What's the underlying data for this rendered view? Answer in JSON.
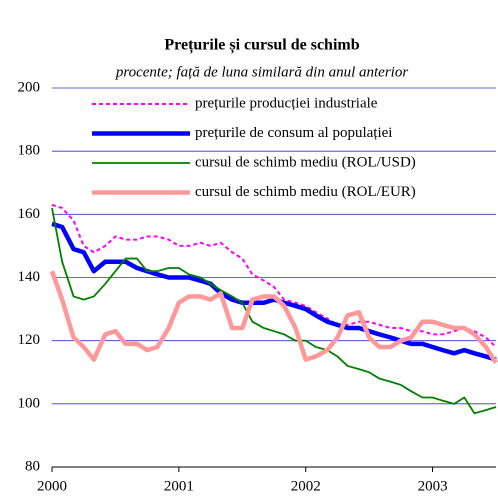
{
  "chart_data": {
    "type": "line",
    "title": "Prețurile și cursul de schimb",
    "subtitle": "procente; față de luna similară din anul anterior",
    "x": [
      2000,
      2000.08,
      2000.17,
      2000.25,
      2000.33,
      2000.42,
      2000.5,
      2000.58,
      2000.67,
      2000.75,
      2000.83,
      2000.92,
      2001,
      2001.08,
      2001.17,
      2001.25,
      2001.33,
      2001.42,
      2001.5,
      2001.58,
      2001.67,
      2001.75,
      2001.83,
      2001.92,
      2002,
      2002.08,
      2002.17,
      2002.25,
      2002.33,
      2002.42,
      2002.5,
      2002.58,
      2002.67,
      2002.75,
      2002.83,
      2002.92,
      2003,
      2003.08,
      2003.17,
      2003.25,
      2003.33,
      2003.42,
      2003.5
    ],
    "xlim": [
      2000,
      2003.5
    ],
    "xticks": [
      2000,
      2001,
      2002,
      2003
    ],
    "ylim": [
      80,
      200
    ],
    "yticks": [
      80,
      100,
      120,
      140,
      160,
      180,
      200
    ],
    "grid": true,
    "series": [
      {
        "name": "prețurile producției industriale",
        "color": "#ff00ff",
        "style": "dashed",
        "values": [
          163,
          162,
          158,
          150,
          148,
          150,
          153,
          152,
          152,
          153,
          153,
          152,
          150,
          150,
          151,
          150,
          151,
          148,
          146,
          141,
          139,
          137,
          133,
          132,
          131,
          129,
          127,
          125,
          125,
          126,
          126,
          125,
          124,
          124,
          123,
          123,
          122,
          122,
          123,
          124,
          123,
          121,
          118
        ]
      },
      {
        "name": "prețurile de consum al populației",
        "color": "#0000ff",
        "style": "thick",
        "values": [
          157,
          156,
          149,
          148,
          142,
          145,
          145,
          145,
          143,
          142,
          141,
          140,
          140,
          140,
          139,
          138,
          135,
          133,
          132,
          132,
          132,
          133,
          132,
          131,
          130,
          128,
          126,
          125,
          124,
          124,
          123,
          122,
          121,
          120,
          119,
          119,
          118,
          117,
          116,
          117,
          116,
          115,
          114
        ]
      },
      {
        "name": "cursul de schimb mediu (ROL/USD)",
        "color": "#008000",
        "style": "thin",
        "values": [
          162,
          145,
          134,
          133,
          134,
          138,
          142,
          146,
          146,
          142,
          142,
          143,
          143,
          141,
          140,
          138,
          136,
          134,
          132,
          126,
          124,
          123,
          122,
          120,
          120,
          118,
          117,
          115,
          112,
          111,
          110,
          108,
          107,
          106,
          104,
          102,
          102,
          101,
          100,
          102,
          97,
          98,
          99
        ]
      },
      {
        "name": "cursul de schimb mediu (ROL/EUR)",
        "color": "#ff9999",
        "style": "thick",
        "values": [
          142,
          133,
          121,
          118,
          114,
          122,
          123,
          119,
          119,
          117,
          118,
          124,
          132,
          134,
          134,
          133,
          135,
          124,
          124,
          133,
          134,
          134,
          131,
          124,
          114,
          115,
          117,
          121,
          128,
          129,
          121,
          118,
          118,
          120,
          121,
          126,
          126,
          125,
          124,
          124,
          122,
          118,
          113
        ]
      }
    ]
  }
}
